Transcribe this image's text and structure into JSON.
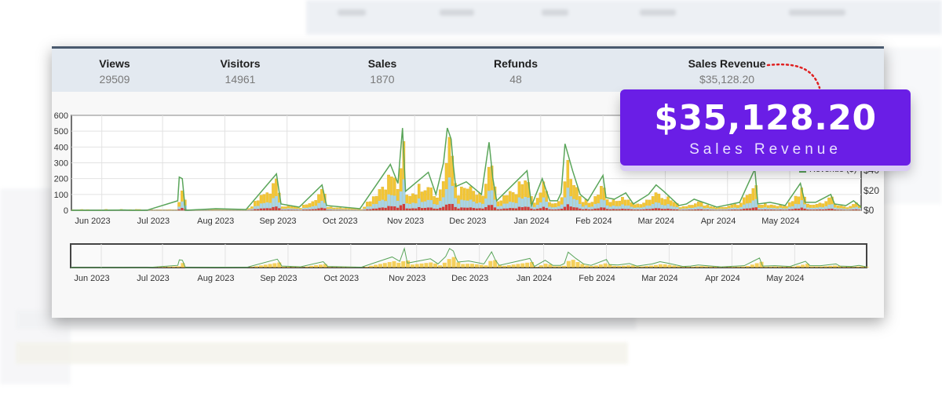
{
  "stats": {
    "views_label": "Views",
    "views_value": "29509",
    "visitors_label": "Visitors",
    "visitors_value": "14961",
    "sales_label": "Sales",
    "sales_value": "1870",
    "refunds_label": "Refunds",
    "refunds_value": "48",
    "revenue_label": "Sales Revenue",
    "revenue_value": "$35,128.20"
  },
  "callout": {
    "amount": "$35,128.20",
    "label": "Sales Revenue"
  },
  "legend": {
    "revenue": "Revenue ($)"
  },
  "right_axis": [
    "$40",
    "$20",
    "$0"
  ],
  "colors": {
    "views": "#f3c635",
    "visitors": "#a8d4e6",
    "sales": "#d23c3c",
    "revenue": "#5aa55a",
    "callout": "#6a1ee6"
  },
  "chart_data": {
    "type": "bar",
    "title": "",
    "ylim": [
      0,
      600
    ],
    "yticks": [
      "600",
      "500",
      "400",
      "300",
      "200",
      "100",
      "0"
    ],
    "right_ylim": [
      0,
      40
    ],
    "x_ticks": [
      "Jun 2023",
      "Jul 2023",
      "Aug 2023",
      "Sep 2023",
      "Oct 2023",
      "Nov 2023",
      "Dec 2023",
      "Jan 2024",
      "Feb 2024",
      "Mar 2024",
      "Apr 2024",
      "May 2024"
    ],
    "grid": true,
    "legend_position": "top-right",
    "series": [
      {
        "name": "Revenue ($)",
        "type": "line",
        "axis": "right",
        "points": [
          [
            0,
            0
          ],
          [
            40,
            0
          ],
          [
            70,
            2
          ],
          [
            80,
            0
          ],
          [
            95,
            0
          ],
          [
            100,
            1
          ],
          [
            140,
            60
          ],
          [
            142,
            210
          ],
          [
            146,
            200
          ],
          [
            150,
            0
          ],
          [
            190,
            10
          ],
          [
            230,
            5
          ],
          [
            270,
            230
          ],
          [
            276,
            40
          ],
          [
            300,
            20
          ],
          [
            330,
            160
          ],
          [
            336,
            30
          ],
          [
            380,
            10
          ],
          [
            420,
            290
          ],
          [
            430,
            170
          ],
          [
            436,
            520
          ],
          [
            440,
            120
          ],
          [
            460,
            200
          ],
          [
            470,
            240
          ],
          [
            480,
            100
          ],
          [
            490,
            300
          ],
          [
            495,
            520
          ],
          [
            500,
            450
          ],
          [
            503,
            280
          ],
          [
            506,
            150
          ],
          [
            520,
            180
          ],
          [
            540,
            100
          ],
          [
            550,
            430
          ],
          [
            555,
            200
          ],
          [
            560,
            60
          ],
          [
            600,
            250
          ],
          [
            606,
            30
          ],
          [
            620,
            200
          ],
          [
            630,
            60
          ],
          [
            640,
            60
          ],
          [
            645,
            110
          ],
          [
            650,
            420
          ],
          [
            660,
            250
          ],
          [
            670,
            100
          ],
          [
            680,
            60
          ],
          [
            700,
            220
          ],
          [
            704,
            80
          ],
          [
            715,
            70
          ],
          [
            730,
            110
          ],
          [
            740,
            40
          ],
          [
            760,
            100
          ],
          [
            770,
            160
          ],
          [
            780,
            120
          ],
          [
            800,
            30
          ],
          [
            810,
            40
          ],
          [
            820,
            70
          ],
          [
            850,
            20
          ],
          [
            860,
            30
          ],
          [
            880,
            50
          ],
          [
            900,
            260
          ],
          [
            904,
            40
          ],
          [
            920,
            50
          ],
          [
            940,
            30
          ],
          [
            960,
            170
          ],
          [
            966,
            50
          ],
          [
            980,
            50
          ],
          [
            1000,
            100
          ],
          [
            1005,
            40
          ],
          [
            1020,
            30
          ],
          [
            1030,
            60
          ],
          [
            1040,
            20
          ]
        ]
      },
      {
        "name": "Views",
        "type": "bar",
        "style": "dense"
      },
      {
        "name": "Visitors",
        "type": "area"
      },
      {
        "name": "Sales",
        "type": "bar"
      }
    ]
  }
}
